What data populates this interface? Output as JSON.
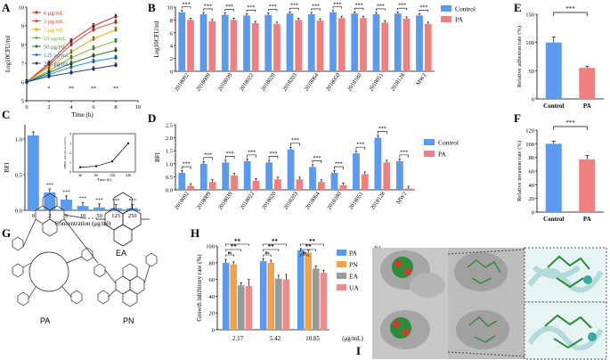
{
  "chart_data": [
    {
      "panel": "A",
      "type": "line",
      "x": [
        0,
        2,
        4,
        6,
        8
      ],
      "xlabel": "Time (h)",
      "ylabel": "Log10CFU/ml",
      "xlim": [
        0,
        10
      ],
      "ylim": [
        5,
        10
      ],
      "xticks": [
        "0",
        "2",
        "4",
        "6",
        "8",
        "10"
      ],
      "yticks": [
        "5",
        "6",
        "7",
        "8",
        "9",
        "10"
      ],
      "colors": [
        "#c0392b",
        "#e74c3c",
        "#e6a817",
        "#7cb342",
        "#2e7d32",
        "#1e88e5",
        "#2c3e8f"
      ],
      "series": [
        {
          "name": "0 μg/mL",
          "values": [
            6.0,
            7.0,
            8.2,
            9.0,
            9.5
          ]
        },
        {
          "name": "2 μg/mL",
          "values": [
            6.0,
            6.9,
            8.0,
            8.8,
            9.2
          ]
        },
        {
          "name": "5 μg/mL",
          "values": [
            6.0,
            6.8,
            7.6,
            8.3,
            8.8
          ]
        },
        {
          "name": "10 μg/mL",
          "values": [
            6.0,
            6.6,
            7.3,
            7.8,
            8.2
          ]
        },
        {
          "name": "50 μg/mL",
          "values": [
            6.0,
            6.5,
            7.0,
            7.4,
            7.7
          ]
        },
        {
          "name": "125 μg/mL",
          "values": [
            6.0,
            6.4,
            6.8,
            7.1,
            7.3
          ]
        },
        {
          "name": "250 μg/mL",
          "values": [
            6.0,
            6.3,
            6.5,
            6.7,
            6.9
          ]
        }
      ],
      "markers": [
        "*",
        "**",
        "**",
        "**"
      ]
    },
    {
      "panel": "B",
      "type": "bar",
      "categories": [
        "2018092",
        "2018009",
        "2018039",
        "2018022",
        "2018020",
        "2018203",
        "2018064",
        "2018050",
        "2018180",
        "2018051",
        "2018128",
        "MW2"
      ],
      "ylabel": "Log10CFU/ml",
      "ylim": [
        0,
        10
      ],
      "yticks": [
        "0",
        "2",
        "4",
        "6",
        "8",
        "10"
      ],
      "legend": [
        "Control",
        "PA"
      ],
      "series": [
        {
          "name": "Control",
          "values": [
            9.2,
            8.9,
            8.8,
            8.7,
            8.8,
            9.0,
            8.9,
            9.2,
            9.0,
            8.9,
            9.0,
            8.7
          ]
        },
        {
          "name": "PA",
          "values": [
            8.0,
            7.8,
            8.0,
            7.5,
            7.4,
            8.0,
            7.9,
            8.3,
            8.3,
            7.6,
            8.2,
            7.4
          ]
        }
      ],
      "significance": [
        "***",
        "***",
        "***",
        "***",
        "***",
        "***",
        "***",
        "***",
        "***",
        "***",
        "***",
        "***"
      ]
    },
    {
      "panel": "C",
      "type": "bar",
      "categories": [
        "0",
        "2",
        "5",
        "10",
        "50",
        "125",
        "250"
      ],
      "values": [
        1.05,
        0.25,
        0.15,
        0.06,
        0.04,
        0.03,
        0.03
      ],
      "significance": [
        "",
        "***",
        "***",
        "***",
        "***",
        "***",
        "***"
      ],
      "xlabel": "Concentration (μg/ml)",
      "ylabel": "BFI",
      "ylim": [
        0,
        1.2
      ],
      "yticks": [
        "0.0",
        "0.5",
        "1.0"
      ],
      "inset": {
        "type": "line",
        "x": [
          "4h",
          "6h",
          "12h",
          "24h"
        ],
        "values": [
          0.5,
          0.6,
          1.1,
          3.0
        ],
        "xlabel": "Time (h)",
        "ylabel": "MBIC amount of control",
        "yticks": [
          "0",
          "1",
          "2",
          "3",
          "4"
        ]
      }
    },
    {
      "panel": "D",
      "type": "bar",
      "categories": [
        "2018092",
        "2018009",
        "2018039",
        "2018022",
        "2018020",
        "2018203",
        "2018064",
        "2018180",
        "2018051",
        "2018128",
        "MW2"
      ],
      "ylabel": "BFI",
      "ylim": [
        0,
        2.5
      ],
      "yticks": [
        "0.0",
        "0.5",
        "1.0",
        "1.5",
        "2.0",
        "2.5"
      ],
      "legend": [
        "Control",
        "PA"
      ],
      "series": [
        {
          "name": "Control",
          "values": [
            0.65,
            1.0,
            1.05,
            1.1,
            1.05,
            1.55,
            0.88,
            0.65,
            1.4,
            2.0,
            1.1
          ]
        },
        {
          "name": "PA",
          "values": [
            0.15,
            0.3,
            0.55,
            0.35,
            0.4,
            0.4,
            0.3,
            0.18,
            0.6,
            1.05,
            0.05
          ]
        }
      ],
      "significance": [
        "***",
        "***",
        "***",
        "***",
        "***",
        "***",
        "***",
        "***",
        "***",
        "***",
        "***"
      ]
    },
    {
      "panel": "E",
      "type": "bar",
      "categories": [
        "Control",
        "PA"
      ],
      "values": [
        100,
        55
      ],
      "errors": [
        10,
        3
      ],
      "ylabel": "Relative adhesion rate (%)",
      "ylim": [
        0,
        150
      ],
      "yticks": [
        "0",
        "50",
        "100",
        "150"
      ],
      "significance": "***"
    },
    {
      "panel": "F",
      "type": "bar",
      "categories": [
        "Control",
        "PA"
      ],
      "values": [
        100,
        77
      ],
      "errors": [
        4,
        6
      ],
      "ylabel": "Relative invasion rate (%)",
      "ylim": [
        0,
        120
      ],
      "yticks": [
        "0",
        "20",
        "40",
        "60",
        "80",
        "100",
        "120"
      ],
      "significance": "***"
    },
    {
      "panel": "H",
      "type": "bar",
      "categories": [
        "2.17",
        "5.42",
        "10.85"
      ],
      "xlabel": "(μg/mL)",
      "ylabel": "Growth inhibitory rate (%)",
      "ylim": [
        0,
        100
      ],
      "yticks": [
        "0",
        "20",
        "40",
        "60",
        "80",
        "100"
      ],
      "legend": [
        "PA",
        "PN",
        "EA",
        "UA"
      ],
      "series": [
        {
          "name": "PA",
          "values": [
            80,
            82,
            95
          ]
        },
        {
          "name": "PN",
          "values": [
            78,
            80,
            92
          ]
        },
        {
          "name": "EA",
          "values": [
            53,
            61,
            73
          ]
        },
        {
          "name": "UA",
          "values": [
            52,
            60,
            68
          ]
        }
      ],
      "errors": [
        [
          4,
          3,
          2
        ],
        [
          3,
          3,
          3
        ],
        [
          3,
          4,
          3
        ],
        [
          8,
          6,
          3
        ]
      ],
      "brackets": [
        {
          "label": "**",
          "from": 0,
          "to": 3,
          "level": 3
        },
        {
          "label": "**",
          "from": 0,
          "to": 2,
          "level": 2
        },
        {
          "label": "ns",
          "from": 0,
          "to": 1,
          "level": 1
        }
      ]
    }
  ],
  "panel_labels": [
    "A",
    "B",
    "C",
    "D",
    "E",
    "F",
    "G",
    "H",
    "I"
  ],
  "colors": {
    "control": "#5b9bef",
    "pa": "#f08080",
    "h_pa": "#5b9bef",
    "h_pn": "#f5a04a",
    "h_ea": "#9a9a9a",
    "h_ua": "#f08b8b",
    "axis": "#000000"
  },
  "molecules": {
    "names": [
      "EA",
      "PA",
      "PN"
    ]
  },
  "docking": {
    "labels": [
      "PA",
      "PN"
    ]
  }
}
